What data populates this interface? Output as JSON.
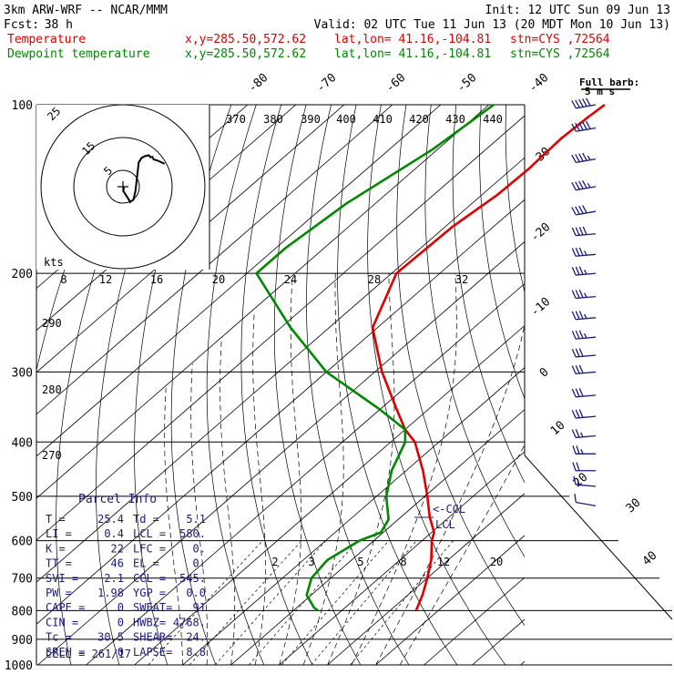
{
  "header": {
    "model": "3km ARW-WRF -- NCAR/MMM",
    "init": "Init: 12 UTC Sun 09 Jun 13",
    "fcst_label": "Fcst:",
    "fcst_value": "38 h",
    "valid": "Valid: 02 UTC Tue 11 Jun 13 (20 MDT Mon 10 Jun 13)"
  },
  "legend": {
    "temperature": {
      "label": "Temperature",
      "xy": "x,y=285.50,572.62",
      "latlon": "lat,lon= 41.16,-104.81",
      "stn": "stn=CYS ,72564",
      "color": "#e00000"
    },
    "dewpoint": {
      "label": "Dewpoint temperature",
      "xy": "x,y=285.50,572.62",
      "latlon": "lat,lon= 41.16,-104.81",
      "stn": "stn=CYS ,72564",
      "color": "#008800"
    }
  },
  "barb_legend": {
    "title": "Full barb:",
    "units": "5 m s"
  },
  "parcel_info": {
    "title": "Parcel Info",
    "rows": [
      {
        "k1": "T  =",
        "v1": "25.4",
        "k2": "Td =",
        "v2": "5.1"
      },
      {
        "k1": "LI =",
        "v1": "0.4",
        "k2": "LCL =",
        "v2": "580."
      },
      {
        "k1": "K  =",
        "v1": "22",
        "k2": "LFC =",
        "v2": "0."
      },
      {
        "k1": "TT =",
        "v1": "46",
        "k2": "EL  =",
        "v2": "0."
      },
      {
        "k1": "SVI =",
        "v1": "2.1",
        "k2": "CCL =",
        "v2": "545."
      },
      {
        "k1": "PW =",
        "v1": "1.98",
        "k2": "YGP =",
        "v2": "0.0"
      },
      {
        "k1": "CAPE =",
        "v1": "0",
        "k2": "SWEAT=",
        "v2": "91"
      },
      {
        "k1": "CIN =",
        "v1": "0",
        "k2": "HWBZ=",
        "v2": "4768."
      },
      {
        "k1": "Tc =",
        "v1": "30.5",
        "k2": "SHEAR=",
        "v2": "24."
      },
      {
        "k1": "SREH =",
        "v1": "0",
        "k2": "LAPSE=",
        "v2": "8.8"
      }
    ],
    "cell": "CELL = 261/17"
  },
  "chart_data": {
    "type": "line",
    "pressure_levels": [
      100,
      200,
      300,
      400,
      500,
      600,
      700,
      800,
      900,
      1000
    ],
    "isotherms": [
      -80,
      -70,
      -60,
      -50,
      -40,
      -30,
      -20,
      -10,
      0,
      10,
      20,
      30,
      40
    ],
    "theta_labels": [
      370,
      380,
      390,
      400,
      410,
      420,
      430,
      440
    ],
    "mixing_ratio_labels": [
      2,
      3,
      5,
      8,
      12,
      20
    ],
    "hodograph_rings": [
      5,
      15,
      25
    ],
    "hodograph_speed_labels": [
      8,
      12,
      16,
      20,
      24,
      28,
      32
    ],
    "hodograph_speed_axis_label": "kts",
    "side_theta_labels": [
      290,
      280,
      270
    ],
    "lcl_labels": [
      "<-CCL",
      "LCL"
    ],
    "series": [
      {
        "name": "Temperature",
        "color": "#e00000",
        "p": [
          100,
          105,
          115,
          130,
          145,
          165,
          200,
          250,
          300,
          350,
          380,
          400,
          450,
          500,
          545,
          580,
          600,
          650,
          700,
          750,
          800
        ],
        "t": [
          -56.0,
          -56.5,
          -57.0,
          -56.5,
          -56.8,
          -58.5,
          -59.0,
          -51.0,
          -38.5,
          -26.5,
          -20.0,
          -15.0,
          -6.5,
          0.5,
          6.0,
          10.5,
          12.0,
          16.5,
          20.0,
          23.0,
          25.4
        ]
      },
      {
        "name": "Dewpoint temperature",
        "color": "#008800",
        "p": [
          100,
          120,
          150,
          180,
          200,
          250,
          300,
          350,
          380,
          400,
          450,
          500,
          550,
          580,
          600,
          650,
          700,
          750,
          790,
          800
        ],
        "td": [
          -79,
          -81,
          -86,
          -88,
          -88,
          -68,
          -50,
          -30,
          -20,
          -17,
          -13,
          -8,
          -2,
          -0.5,
          -3.0,
          -5.0,
          -4.0,
          -1.0,
          3.5,
          5.1
        ]
      }
    ],
    "hodograph_trace": [
      [
        0.3,
        0.1
      ],
      [
        0.1,
        -1.3
      ],
      [
        1.9,
        -4.1
      ],
      [
        2.2,
        -4.7
      ],
      [
        2.5,
        -4.4
      ],
      [
        3.2,
        -4.0
      ],
      [
        3.8,
        -1.3
      ],
      [
        4.5,
        4.7
      ],
      [
        4.8,
        7.4
      ],
      [
        5.7,
        8.8
      ],
      [
        6.7,
        9.3
      ],
      [
        7.8,
        9.6
      ],
      [
        8.1,
        9.4
      ],
      [
        8.3,
        9.0
      ],
      [
        9.0,
        9.1
      ],
      [
        9.2,
        8.6
      ],
      [
        9.4,
        8.3
      ],
      [
        10.5,
        8.0
      ],
      [
        11.6,
        7.5
      ],
      [
        12.7,
        7.0
      ]
    ],
    "wind_barbs": [
      {
        "p": 100,
        "spd": 50,
        "dir": 260
      },
      {
        "p": 110,
        "spd": 50,
        "dir": 260
      },
      {
        "p": 125,
        "spd": 45,
        "dir": 260
      },
      {
        "p": 140,
        "spd": 45,
        "dir": 260
      },
      {
        "p": 155,
        "spd": 40,
        "dir": 260
      },
      {
        "p": 170,
        "spd": 40,
        "dir": 265
      },
      {
        "p": 185,
        "spd": 35,
        "dir": 265
      },
      {
        "p": 200,
        "spd": 35,
        "dir": 265
      },
      {
        "p": 220,
        "spd": 35,
        "dir": 265
      },
      {
        "p": 240,
        "spd": 35,
        "dir": 265
      },
      {
        "p": 260,
        "spd": 35,
        "dir": 265
      },
      {
        "p": 280,
        "spd": 30,
        "dir": 265
      },
      {
        "p": 300,
        "spd": 30,
        "dir": 265
      },
      {
        "p": 330,
        "spd": 30,
        "dir": 265
      },
      {
        "p": 360,
        "spd": 30,
        "dir": 265
      },
      {
        "p": 390,
        "spd": 25,
        "dir": 265
      },
      {
        "p": 420,
        "spd": 25,
        "dir": 270
      },
      {
        "p": 450,
        "spd": 20,
        "dir": 270
      },
      {
        "p": 480,
        "spd": 15,
        "dir": 275
      },
      {
        "p": 520,
        "spd": 10,
        "dir": 280
      }
    ]
  }
}
